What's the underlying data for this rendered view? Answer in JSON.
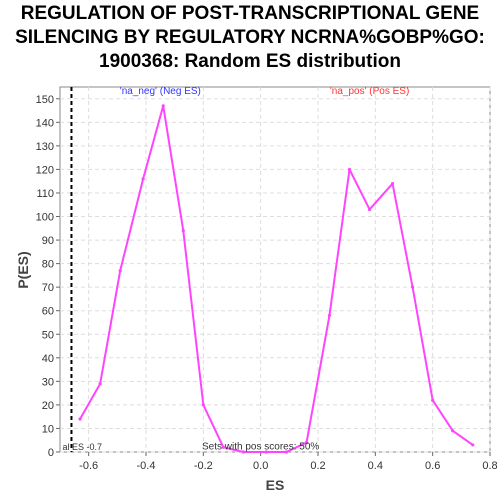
{
  "chart_data": {
    "type": "line",
    "title_lines": [
      "REGULATION OF POST-TRANSCRIPTIONAL GENE",
      " SILENCING BY REGULATORY NCRNA%GOBP%GO:",
      "1900368: Random ES distribution"
    ],
    "xlabel": "ES",
    "ylabel": "P(ES)",
    "xlim": [
      -0.7,
      0.8
    ],
    "ylim": [
      0,
      155
    ],
    "xticks": [
      -0.6,
      -0.4,
      -0.2,
      0.0,
      0.2,
      0.4,
      0.6,
      0.8
    ],
    "xtick_labels": [
      "-0.6",
      "-0.4",
      "-0.2",
      "0.0",
      "0.2",
      "0.4",
      "0.6",
      "0.8"
    ],
    "yticks": [
      0,
      10,
      20,
      30,
      40,
      50,
      60,
      70,
      80,
      90,
      100,
      110,
      120,
      130,
      140,
      150
    ],
    "ytick_labels": [
      "0",
      "10",
      "20",
      "30",
      "40",
      "50",
      "60",
      "70",
      "80",
      "90",
      "100",
      "110",
      "120",
      "130",
      "140",
      "150"
    ],
    "grid": true,
    "series": [
      {
        "color": "#ff44ff",
        "x": [
          -0.63,
          -0.56,
          -0.49,
          -0.41,
          -0.34,
          -0.27,
          -0.2,
          -0.13,
          -0.06,
          0.02,
          0.09,
          0.16,
          0.24,
          0.31,
          0.38,
          0.46,
          0.53,
          0.6,
          0.67,
          0.74
        ],
        "y": [
          14,
          29,
          77,
          116,
          147,
          94,
          20,
          2,
          0,
          0,
          0,
          4,
          58,
          120,
          103,
          114,
          70,
          22,
          9,
          3
        ]
      }
    ],
    "reference_line": {
      "x": -0.66,
      "label": "al ES -0.7",
      "color": "#000000",
      "style": "dashed"
    },
    "annotations": [
      {
        "text": "'na_neg' (Neg ES)",
        "color": "#3333ff",
        "x": -0.35,
        "y": 152
      },
      {
        "text": "'na_pos' (Pos ES)",
        "color": "#ff3333",
        "x": 0.38,
        "y": 152
      },
      {
        "text": "Sets with pos scores: 50%",
        "color": "#333333",
        "x": 0.0,
        "y": 1
      }
    ]
  }
}
